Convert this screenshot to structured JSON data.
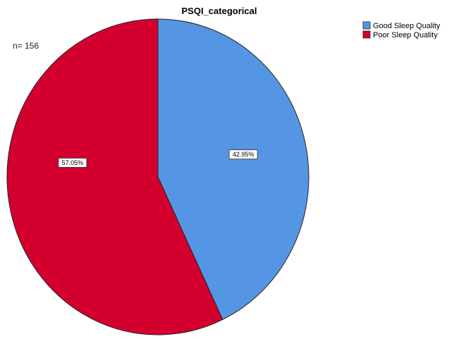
{
  "chart_data": {
    "type": "pie",
    "title": "PSQI_categorical",
    "n_label": "n= 156",
    "slices": [
      {
        "name": "Good Sleep Quality",
        "value": 42.95,
        "label": "42.95%",
        "color": "#5596e4"
      },
      {
        "name": "Poor Sleep Quality",
        "value": 57.05,
        "label": "57.05%",
        "color": "#d3002f"
      }
    ],
    "legend_position": "top-right"
  }
}
